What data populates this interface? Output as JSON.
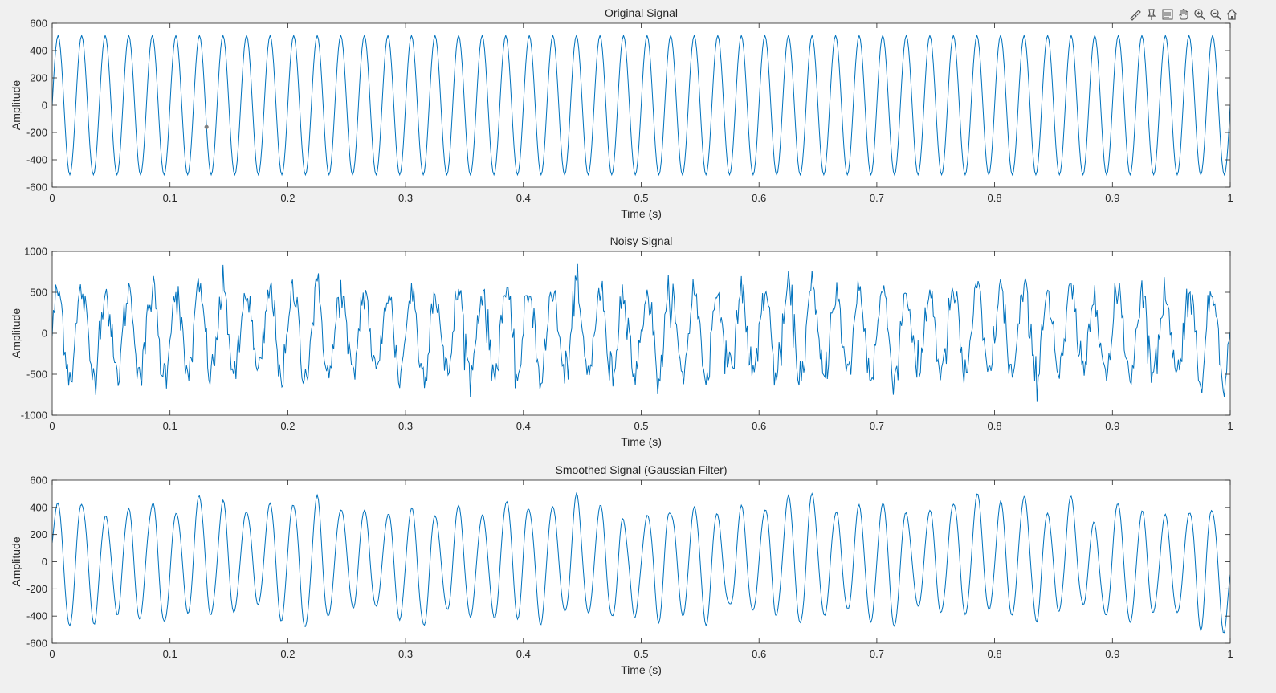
{
  "toolbar": {
    "icons": [
      "brush-icon",
      "pin-icon",
      "legend-icon",
      "pan-icon",
      "zoom-in-icon",
      "zoom-out-icon",
      "home-icon"
    ]
  },
  "colors": {
    "line": "#0072BD",
    "axes_bg": "#ffffff",
    "figure_bg": "#f0f0f0",
    "axis": "#262626",
    "marker": "#808080"
  },
  "chart_data": [
    {
      "type": "line",
      "title": "Original Signal",
      "xlabel": "Time (s)",
      "ylabel": "Amplitude",
      "xlim": [
        0,
        1
      ],
      "ylim": [
        -600,
        600
      ],
      "xticks": [
        0,
        0.1,
        0.2,
        0.3,
        0.4,
        0.5,
        0.6,
        0.7,
        0.8,
        0.9,
        1
      ],
      "yticks": [
        -600,
        -400,
        -200,
        0,
        200,
        400,
        600
      ],
      "grid": false,
      "series": [
        {
          "description": "clean sinusoid",
          "frequency_hz": 50,
          "amplitude": 510,
          "t_start": 0,
          "t_end": 1
        }
      ],
      "datatip": {
        "x": 0.131,
        "y": -160
      }
    },
    {
      "type": "line",
      "title": "Noisy Signal",
      "xlabel": "Time (s)",
      "ylabel": "Amplitude",
      "xlim": [
        0,
        1
      ],
      "ylim": [
        -1000,
        1000
      ],
      "xticks": [
        0,
        0.1,
        0.2,
        0.3,
        0.4,
        0.5,
        0.6,
        0.7,
        0.8,
        0.9,
        1
      ],
      "yticks": [
        -1000,
        -500,
        0,
        500,
        1000
      ],
      "grid": false,
      "series": [
        {
          "description": "sinusoid plus noise",
          "frequency_hz": 50,
          "amplitude": 510,
          "noise_std": 130,
          "t_start": 0,
          "t_end": 1
        }
      ]
    },
    {
      "type": "line",
      "title": "Smoothed Signal (Gaussian Filter)",
      "xlabel": "Time (s)",
      "ylabel": "Amplitude",
      "xlim": [
        0,
        1
      ],
      "ylim": [
        -600,
        600
      ],
      "xticks": [
        0,
        0.1,
        0.2,
        0.3,
        0.4,
        0.5,
        0.6,
        0.7,
        0.8,
        0.9,
        1
      ],
      "yticks": [
        -600,
        -400,
        -200,
        0,
        200,
        400,
        600
      ],
      "grid": false,
      "series": [
        {
          "description": "gaussian-smoothed noisy signal",
          "frequency_hz": 50,
          "amplitude_range": [
            270,
            570
          ],
          "t_start": 0,
          "t_end": 1
        }
      ]
    }
  ]
}
